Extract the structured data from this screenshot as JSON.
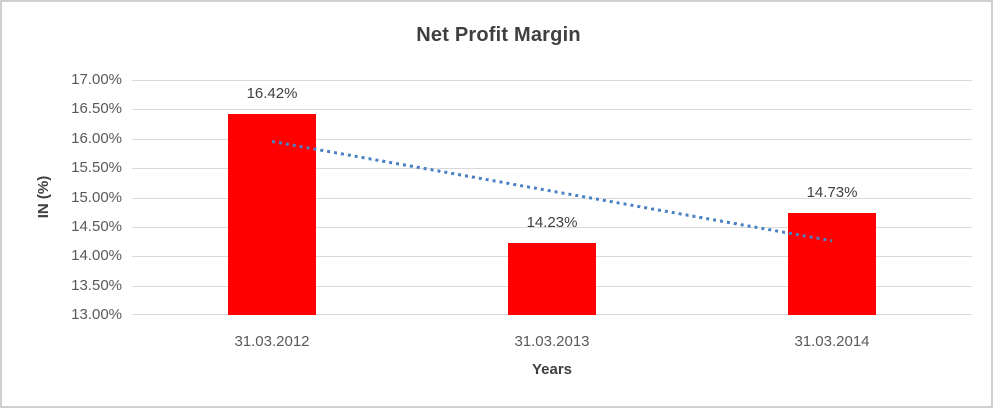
{
  "chart_data": {
    "type": "bar",
    "title": "Net Profit Margin",
    "categories": [
      "31.03.2012",
      "31.03.2013",
      "31.03.2014"
    ],
    "values": [
      16.42,
      14.23,
      14.73
    ],
    "data_labels": [
      "16.42%",
      "14.23%",
      "14.73%"
    ],
    "xlabel": "Years",
    "ylabel": "IN (%)",
    "ylim": [
      13,
      17
    ],
    "ytick_step": 0.5,
    "yticks": [
      "17.00%",
      "16.50%",
      "16.00%",
      "15.50%",
      "15.00%",
      "14.50%",
      "14.00%",
      "13.50%",
      "13.00%"
    ],
    "grid": true,
    "legend": "none",
    "bar_color": "#ff0000",
    "label_color": "#404040",
    "axis_text_color": "#595959",
    "gridline_color": "#d9d9d9",
    "trendline": {
      "type": "linear",
      "style": "dotted",
      "color": "#4a80c4",
      "start_value": 15.97,
      "end_value": 14.28
    }
  }
}
